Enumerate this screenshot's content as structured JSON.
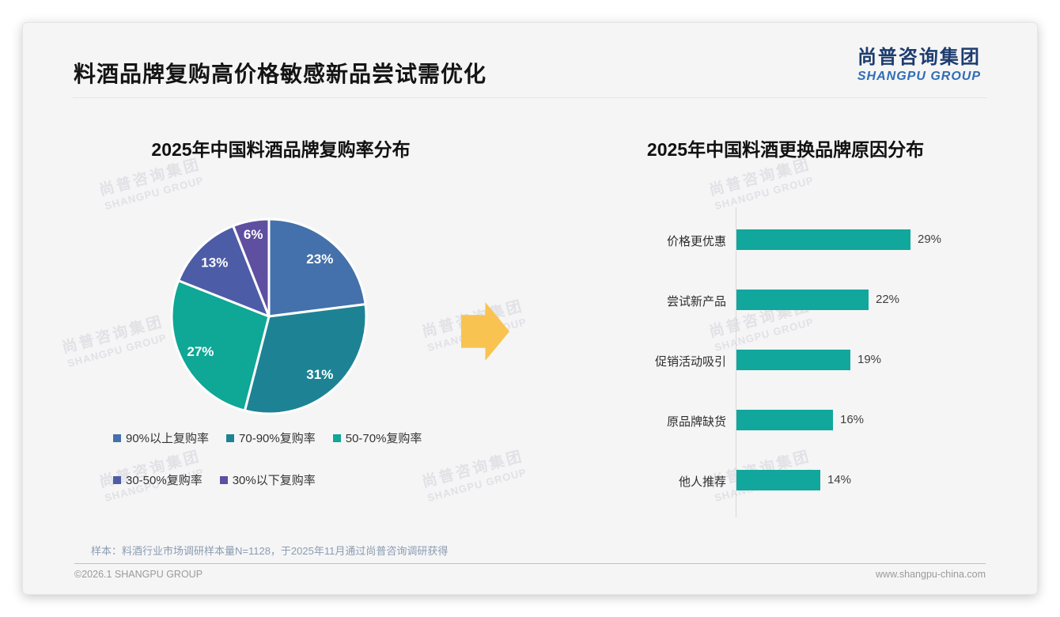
{
  "page": {
    "title": "料酒品牌复购高价格敏感新品尝试需优化",
    "logo": {
      "cn": "尚普咨询集团",
      "en": "SHANGPU GROUP"
    },
    "watermark": {
      "cn": "尚普咨询集团",
      "en": "SHANGPU GROUP"
    },
    "sample_note": "样本：料酒行业市场调研样本量N=1128，于2025年11月通过尚普咨询调研获得",
    "footer_left": "©2026.1 SHANGPU GROUP",
    "footer_right": "www.shangpu-china.com"
  },
  "colors": {
    "card_bg": "#f5f5f6",
    "arrow": "#f8c350",
    "watermark": "#e1e1e6",
    "logo_cn": "#1d3c6e",
    "logo_en": "#2f6db5"
  },
  "chart_data": [
    {
      "type": "pie",
      "title": "2025年中国料酒品牌复购率分布",
      "labels": [
        "90%以上复购率",
        "70-90%复购率",
        "50-70%复购率",
        "30-50%复购率",
        "30%以下复购率"
      ],
      "values": [
        23,
        31,
        27,
        13,
        6
      ],
      "value_labels": [
        "23%",
        "31%",
        "27%",
        "13%",
        "6%"
      ],
      "colors": [
        "#4471ab",
        "#1d8394",
        "#0fa795",
        "#4d5ca6",
        "#5e4fa0"
      ],
      "start_angle_deg": 0,
      "direction": "clockwise",
      "legend_position": "bottom",
      "slice_label_color": "#ffffff"
    },
    {
      "type": "bar",
      "title": "2025年中国料酒更换品牌原因分布",
      "orientation": "horizontal",
      "categories": [
        "价格更优惠",
        "尝试新产品",
        "促销活动吸引",
        "原品牌缺货",
        "他人推荐"
      ],
      "values": [
        29,
        22,
        19,
        16,
        14
      ],
      "value_labels": [
        "29%",
        "22%",
        "19%",
        "16%",
        "14%"
      ],
      "bar_color": "#11a79c",
      "xlim": [
        0,
        30
      ],
      "grid": false
    }
  ]
}
